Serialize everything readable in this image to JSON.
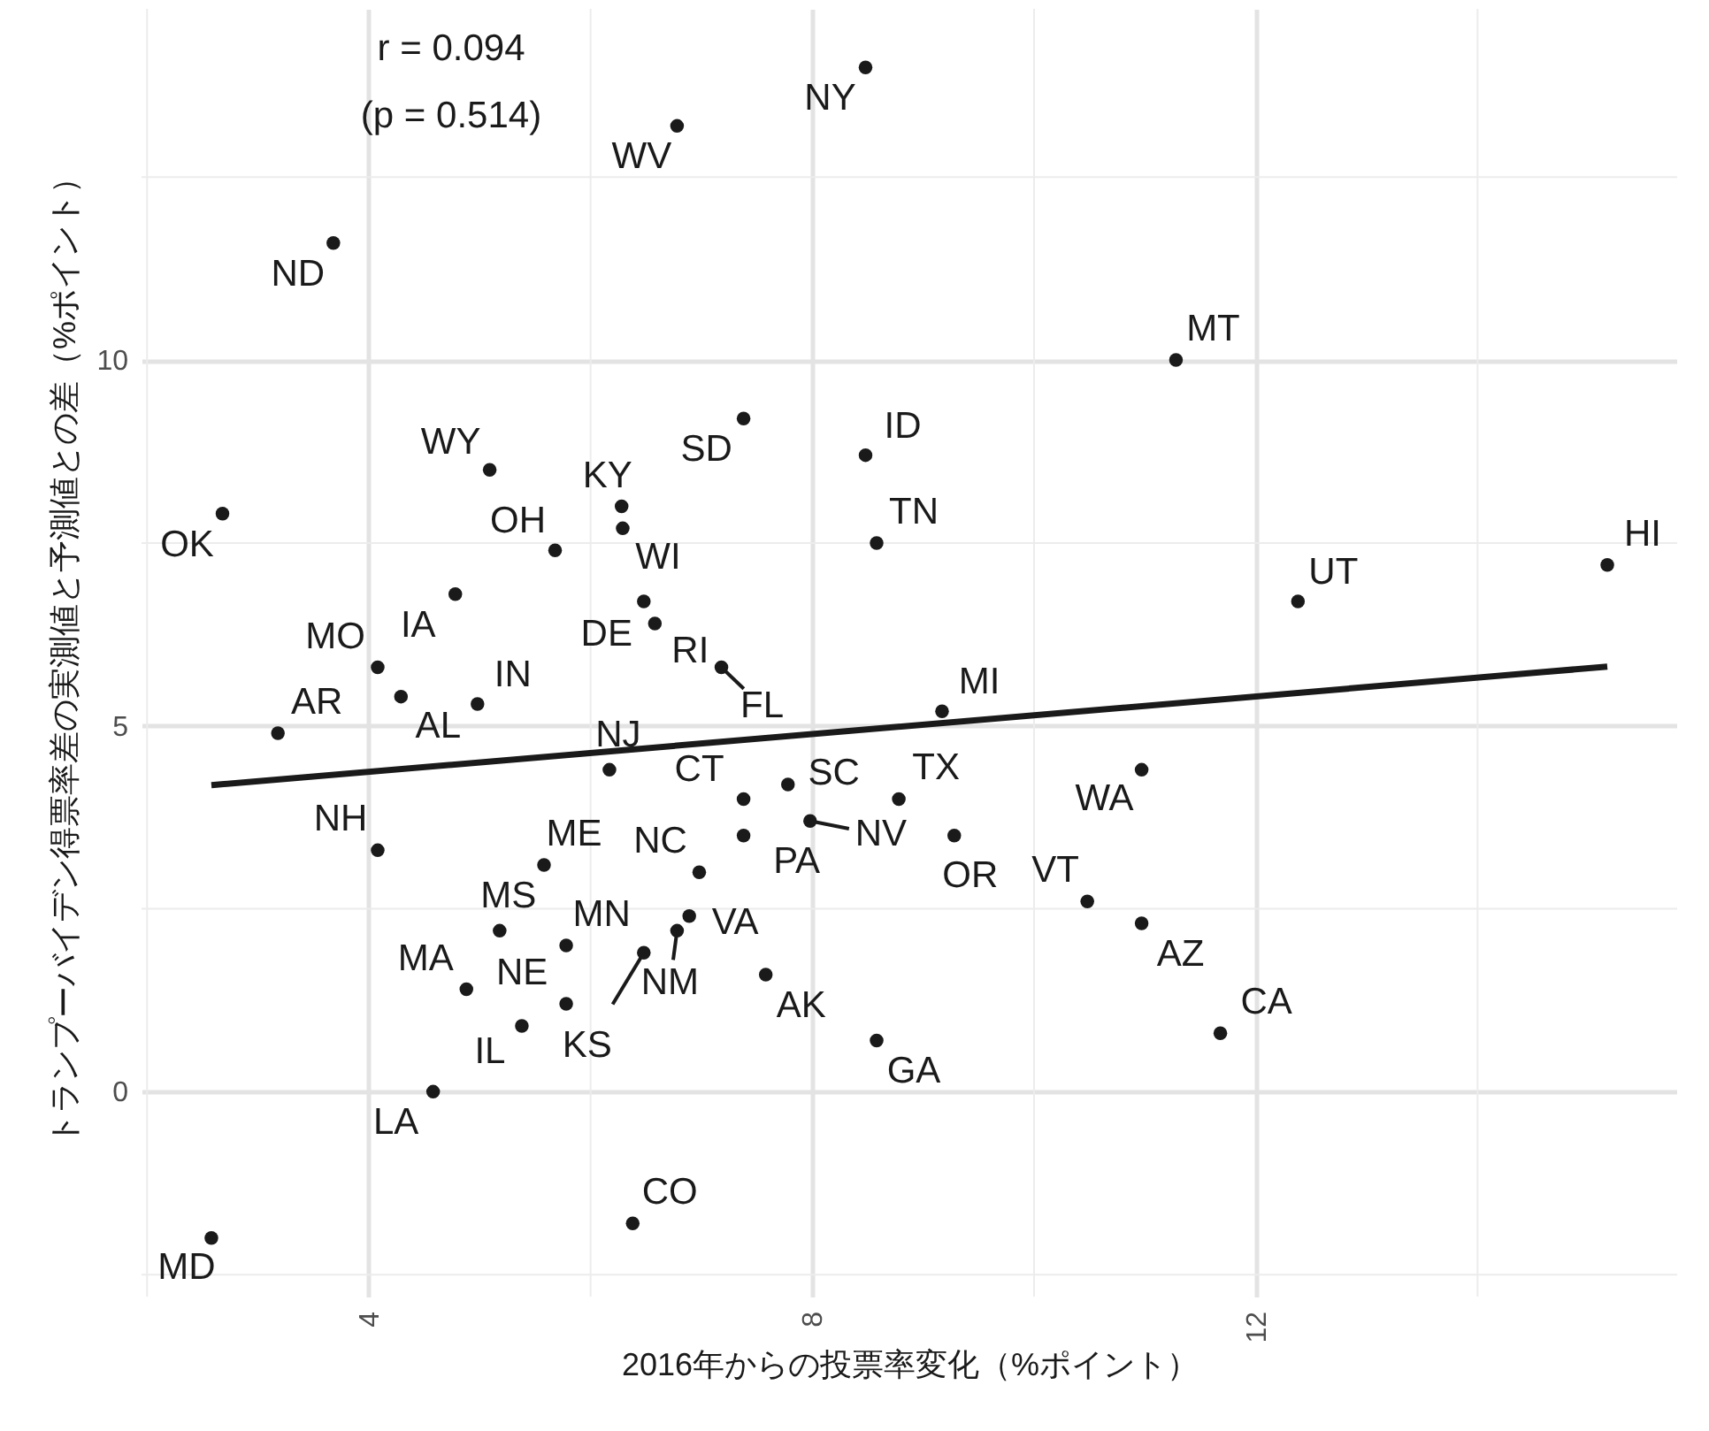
{
  "chart_data": {
    "type": "scatter",
    "xlabel": "2016年からの投票率変化（%ポイント）",
    "ylabel": "トランプーバイデン得票率差の実測値と予測値との差（%ポイント）",
    "x": [
      8.48,
      6.78,
      3.68,
      11.28,
      7.38,
      5.09,
      8.48,
      6.28,
      6.29,
      2.68,
      5.68,
      8.58,
      15.17,
      12.38,
      4.78,
      6.48,
      6.58,
      7.18,
      4.08,
      3.18,
      4.29,
      4.98,
      9.17,
      6.17,
      10.97,
      7.38,
      7.78,
      8.78,
      7.98,
      7.38,
      9.28,
      4.08,
      5.58,
      6.98,
      10.48,
      5.18,
      6.89,
      6.78,
      10.97,
      5.78,
      6.48,
      4.88,
      5.78,
      7.58,
      5.38,
      11.68,
      8.58,
      4.58,
      6.38,
      2.58
    ],
    "series": [
      {
        "type": "scatter",
        "marker": "circle",
        "color": "#1a1a1a",
        "values": [
          14.0,
          13.2,
          11.6,
          10.0,
          9.2,
          8.5,
          8.7,
          8.0,
          7.7,
          7.9,
          7.4,
          7.5,
          7.2,
          6.7,
          6.8,
          6.7,
          6.4,
          5.8,
          5.8,
          4.9,
          5.4,
          5.3,
          5.2,
          4.4,
          4.4,
          4.0,
          4.2,
          4.0,
          3.7,
          3.5,
          3.5,
          3.3,
          3.1,
          3.0,
          2.6,
          2.2,
          2.4,
          2.2,
          2.3,
          2.0,
          1.9,
          1.4,
          1.2,
          1.6,
          0.9,
          0.8,
          0.7,
          0.0,
          -1.8,
          -2.0
        ]
      },
      {
        "type": "line",
        "color": "#1a1a1a",
        "x": [
          2.58,
          15.17
        ],
        "values": [
          4.19,
          5.81
        ]
      }
    ],
    "xlim": [
      1.95,
      15.8
    ],
    "ylim": [
      -2.8,
      14.8
    ],
    "xticks": [
      4,
      8,
      12
    ],
    "yticks": [
      0,
      5,
      10
    ],
    "grid": true,
    "annotations": [
      "r = 0.094",
      "(p = 0.514)",
      {
        "text": "NY",
        "x": 8.48,
        "y": 14.0
      },
      {
        "text": "WV",
        "x": 6.78,
        "y": 13.2
      },
      {
        "text": "ND",
        "x": 3.68,
        "y": 11.6
      },
      {
        "text": "MT",
        "x": 11.28,
        "y": 10.0
      },
      {
        "text": "SD",
        "x": 7.38,
        "y": 9.2
      },
      {
        "text": "WY",
        "x": 5.09,
        "y": 8.5
      },
      {
        "text": "ID",
        "x": 8.48,
        "y": 8.7
      },
      {
        "text": "KY",
        "x": 6.28,
        "y": 8.0
      },
      {
        "text": "WI",
        "x": 6.29,
        "y": 7.7
      },
      {
        "text": "OK",
        "x": 2.68,
        "y": 7.9
      },
      {
        "text": "OH",
        "x": 5.68,
        "y": 7.4
      },
      {
        "text": "TN",
        "x": 8.58,
        "y": 7.5
      },
      {
        "text": "HI",
        "x": 15.17,
        "y": 7.2
      },
      {
        "text": "UT",
        "x": 12.38,
        "y": 6.7
      },
      {
        "text": "IA",
        "x": 4.78,
        "y": 6.8
      },
      {
        "text": "DE",
        "x": 6.48,
        "y": 6.7
      },
      {
        "text": "RI",
        "x": 6.58,
        "y": 6.4
      },
      {
        "text": "FL",
        "x": 7.18,
        "y": 5.8
      },
      {
        "text": "MO",
        "x": 4.08,
        "y": 5.8
      },
      {
        "text": "AR",
        "x": 3.18,
        "y": 4.9
      },
      {
        "text": "AL",
        "x": 4.29,
        "y": 5.4
      },
      {
        "text": "IN",
        "x": 4.98,
        "y": 5.3
      },
      {
        "text": "MI",
        "x": 9.17,
        "y": 5.2
      },
      {
        "text": "NJ",
        "x": 6.17,
        "y": 4.4
      },
      {
        "text": "WA",
        "x": 10.97,
        "y": 4.4
      },
      {
        "text": "CT",
        "x": 7.38,
        "y": 4.0
      },
      {
        "text": "SC",
        "x": 7.78,
        "y": 4.2
      },
      {
        "text": "TX",
        "x": 8.78,
        "y": 4.0
      },
      {
        "text": "NV",
        "x": 7.98,
        "y": 3.7
      },
      {
        "text": "PA",
        "x": 7.38,
        "y": 3.5
      },
      {
        "text": "OR",
        "x": 9.28,
        "y": 3.5
      },
      {
        "text": "NH",
        "x": 4.08,
        "y": 3.3
      },
      {
        "text": "ME",
        "x": 5.58,
        "y": 3.1
      },
      {
        "text": "NC",
        "x": 6.98,
        "y": 3.0
      },
      {
        "text": "VT",
        "x": 10.48,
        "y": 2.6
      },
      {
        "text": "MS",
        "x": 5.18,
        "y": 2.2
      },
      {
        "text": "VA",
        "x": 6.89,
        "y": 2.4
      },
      {
        "text": "NM",
        "x": 6.78,
        "y": 2.2
      },
      {
        "text": "AZ",
        "x": 10.97,
        "y": 2.3
      },
      {
        "text": "MN",
        "x": 5.78,
        "y": 2.0
      },
      {
        "text": "KS",
        "x": 6.48,
        "y": 1.9
      },
      {
        "text": "MA",
        "x": 4.88,
        "y": 1.4
      },
      {
        "text": "NE",
        "x": 5.78,
        "y": 1.2
      },
      {
        "text": "AK",
        "x": 7.58,
        "y": 1.6
      },
      {
        "text": "IL",
        "x": 5.38,
        "y": 0.9
      },
      {
        "text": "CA",
        "x": 11.68,
        "y": 0.8
      },
      {
        "text": "GA",
        "x": 8.58,
        "y": 0.7
      },
      {
        "text": "LA",
        "x": 4.58,
        "y": 0.0
      },
      {
        "text": "CO",
        "x": 6.38,
        "y": -1.8
      },
      {
        "text": "MD",
        "x": 2.58,
        "y": -2.0
      }
    ]
  }
}
